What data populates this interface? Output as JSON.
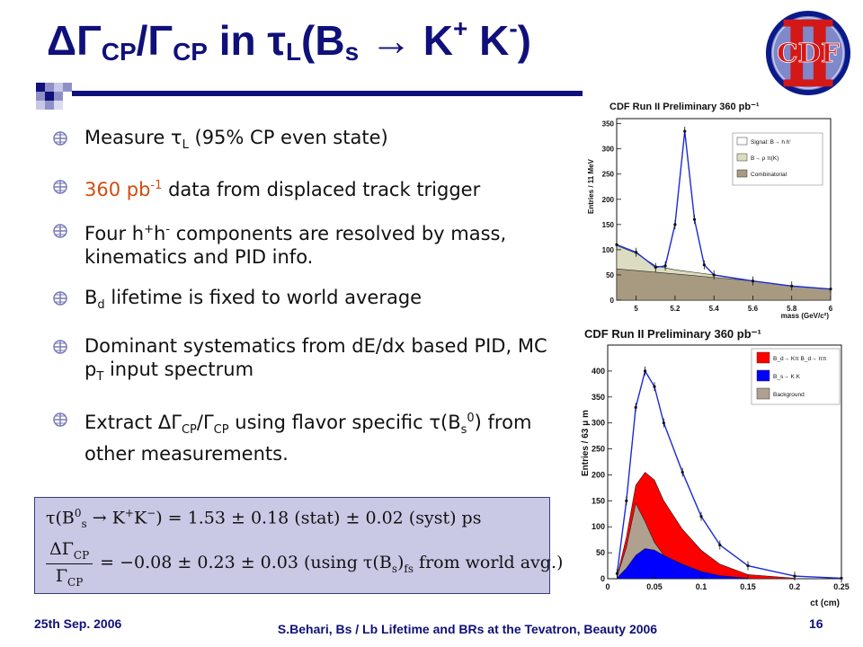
{
  "slide": {
    "title": {
      "delta_gamma": "ΔΓ",
      "cp_sub_1": "CP",
      "slash_gamma": "/Γ",
      "cp_sub_2": "CP",
      "in_tau": " in τ",
      "l_sub": "L",
      "bs_open": "(B",
      "s_sub": "s",
      "arrow_kk": " → K",
      "plus_sup": "+",
      "k2": " K",
      "minus_sup": "-",
      "close": ")"
    },
    "bullets": {
      "b1_a": "Measure τ",
      "b1_sub": "L",
      "b1_b": " (95% CP even state)",
      "b2_accent": "360 pb",
      "b2_sup": "-1",
      "b2_rest": " data from displaced track trigger",
      "b3_a": "Four h",
      "b3_sup1": "+",
      "b3_b": "h",
      "b3_sup2": "-",
      "b3_c": " components are resolved by mass, kinematics and PID info.",
      "b4_a": "B",
      "b4_sub": "d",
      "b4_b": " lifetime is fixed to world average",
      "b5_a": "Dominant systematics from dE/dx based PID, MC p",
      "b5_sub": "T",
      "b5_b": " input spectrum",
      "b6_a": "Extract ΔΓ",
      "b6_sub1": "CP",
      "b6_b": "/Γ",
      "b6_sub2": "CP",
      "b6_c": " using flavor specific τ(B",
      "b6_sub3": "s",
      "b6_sup3": "0",
      "b6_d": ") from other measurements."
    },
    "formula": {
      "line1_a": "τ(B",
      "line1_sup": "0",
      "line1_sub": "s",
      "line1_b": " → K",
      "line1_sup2": "+",
      "line1_c": "K",
      "line1_sup3": "−",
      "line1_d": ") = 1.53 ± 0.18 (stat) ± 0.02 (syst) ps",
      "line2_num_a": "ΔΓ",
      "line2_num_sub": "CP",
      "line2_den_a": "Γ",
      "line2_den_sub": "CP",
      "line2_rest_a": " = −0.08 ± 0.23 ± 0.03   (using τ(B",
      "line2_rest_sub": "s",
      "line2_rest_b": ")",
      "line2_rest_sub2": "fs",
      "line2_rest_c": " from world avg.)"
    },
    "footer": {
      "date": "25th Sep. 2006",
      "center": "S.Behari, Bs / Lb Lifetime and BRs at the Tevatron, Beauty 2006",
      "page": "16"
    },
    "logo_text": "CDF"
  },
  "chart_data": [
    {
      "type": "line",
      "title": "CDF Run II Preliminary 360 pb⁻¹",
      "xlabel": "mass (GeV/c²)",
      "ylabel": "Entries / 11 MeV",
      "xlim": [
        4.9,
        6.0
      ],
      "ylim": [
        0,
        360
      ],
      "xticks": [
        "5",
        "5.2",
        "5.4",
        "5.6",
        "5.8",
        "6"
      ],
      "yticks": [
        "0",
        "50",
        "100",
        "150",
        "200",
        "250",
        "300",
        "350"
      ],
      "legend": [
        "Signal: B→ h h'",
        "B→ ρ π(K)",
        "Combinatorial"
      ],
      "legend_position": "top-right",
      "series": [
        {
          "name": "Signal: B→ h h'",
          "x": [
            4.9,
            5.0,
            5.1,
            5.15,
            5.2,
            5.25,
            5.3,
            5.35,
            5.4,
            5.6,
            5.8,
            6.0
          ],
          "values": [
            110,
            95,
            65,
            68,
            150,
            335,
            160,
            70,
            50,
            38,
            28,
            22
          ]
        },
        {
          "name": "B→ ρ π(K)",
          "x": [
            4.9,
            5.0,
            5.1,
            5.2,
            5.3,
            5.4,
            5.6,
            5.8,
            6.0
          ],
          "values": [
            108,
            93,
            68,
            60,
            55,
            50,
            38,
            28,
            22
          ]
        },
        {
          "name": "Combinatorial",
          "x": [
            4.9,
            5.2,
            5.4,
            5.6,
            5.8,
            6.0
          ],
          "values": [
            62,
            52,
            45,
            38,
            28,
            22
          ]
        }
      ],
      "colors": {
        "signal": "#ffffff",
        "partial": "#dcdcc0",
        "combinatorial": "#a89a80",
        "fit": "#1a2ad8"
      }
    },
    {
      "type": "area",
      "title": "CDF Run II Preliminary 360 pb⁻¹",
      "xlabel": "ct (cm)",
      "ylabel": "Entries / 63 μ m",
      "xlim": [
        0,
        0.25
      ],
      "ylim": [
        0,
        450
      ],
      "xticks": [
        "0",
        "0.05",
        "0.1",
        "0.15",
        "0.2",
        "0.25"
      ],
      "yticks": [
        "0",
        "50",
        "100",
        "150",
        "200",
        "250",
        "300",
        "350",
        "400"
      ],
      "legend": [
        "B_d→ Kπ B_d→ ππ",
        "B_s→ K K",
        "Background"
      ],
      "legend_position": "top-right",
      "series": [
        {
          "name": "total fit",
          "x": [
            0.01,
            0.02,
            0.03,
            0.04,
            0.05,
            0.06,
            0.08,
            0.1,
            0.12,
            0.15,
            0.2,
            0.25
          ],
          "values": [
            10,
            150,
            330,
            400,
            370,
            300,
            205,
            120,
            65,
            25,
            5,
            1
          ]
        },
        {
          "name": "B_d→ Kπ B_d→ ππ",
          "x": [
            0.01,
            0.02,
            0.03,
            0.04,
            0.05,
            0.06,
            0.08,
            0.1,
            0.12,
            0.15,
            0.2
          ],
          "values": [
            5,
            80,
            180,
            205,
            190,
            150,
            95,
            55,
            28,
            8,
            1
          ]
        },
        {
          "name": "Background",
          "x": [
            0.01,
            0.02,
            0.03,
            0.04,
            0.05,
            0.06,
            0.08,
            0.1,
            0.12,
            0.15
          ],
          "values": [
            4,
            60,
            145,
            110,
            70,
            45,
            22,
            10,
            4,
            1
          ]
        },
        {
          "name": "B_s→ K K",
          "x": [
            0.01,
            0.02,
            0.03,
            0.04,
            0.05,
            0.06,
            0.08,
            0.1,
            0.12,
            0.15
          ],
          "values": [
            2,
            20,
            45,
            58,
            55,
            45,
            28,
            14,
            6,
            1
          ]
        }
      ],
      "colors": {
        "bd": "#ff0000",
        "bs": "#0000ff",
        "background": "#b0a090",
        "fit": "#1a2ad8"
      }
    }
  ]
}
